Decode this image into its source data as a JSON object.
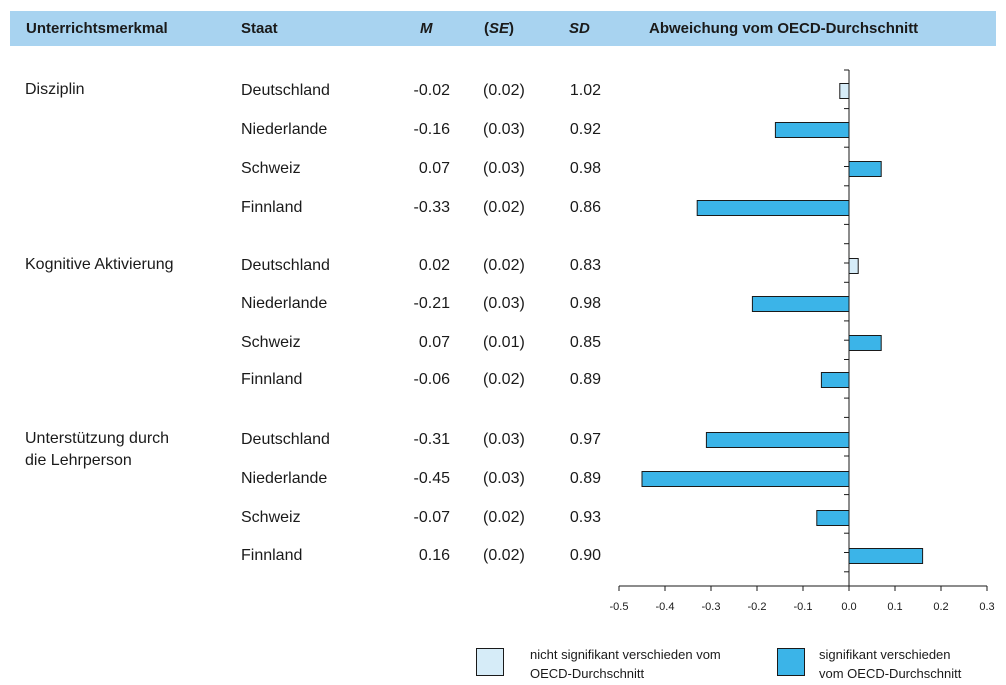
{
  "header": {
    "col_feature": "Unterrichtsmerkmal",
    "col_country": "Staat",
    "col_m": "M",
    "col_se_open": "(",
    "col_se": "SE",
    "col_se_close": ")",
    "col_sd": "SD",
    "col_chart": "Abweichung vom OECD-Durchschnitt"
  },
  "groups": [
    {
      "feature_lines": [
        "Disziplin"
      ]
    },
    {
      "feature_lines": [
        "Kognitive Aktivierung"
      ]
    },
    {
      "feature_lines": [
        "Unterstützung durch",
        "die Lehrperson"
      ]
    }
  ],
  "rows": [
    {
      "country": "Deutschland",
      "m": "-0.02",
      "se": "(0.02)",
      "sd": "1.02"
    },
    {
      "country": "Niederlande",
      "m": "-0.16",
      "se": "(0.03)",
      "sd": "0.92"
    },
    {
      "country": "Schweiz",
      "m": "0.07",
      "se": "(0.03)",
      "sd": "0.98"
    },
    {
      "country": "Finnland",
      "m": "-0.33",
      "se": "(0.02)",
      "sd": "0.86"
    },
    {
      "country": "Deutschland",
      "m": "0.02",
      "se": "(0.02)",
      "sd": "0.83"
    },
    {
      "country": "Niederlande",
      "m": "-0.21",
      "se": "(0.03)",
      "sd": "0.98"
    },
    {
      "country": "Schweiz",
      "m": "0.07",
      "se": "(0.01)",
      "sd": "0.85"
    },
    {
      "country": "Finnland",
      "m": "-0.06",
      "se": "(0.02)",
      "sd": "0.89"
    },
    {
      "country": "Deutschland",
      "m": "-0.31",
      "se": "(0.03)",
      "sd": "0.97"
    },
    {
      "country": "Niederlande",
      "m": "-0.45",
      "se": "(0.03)",
      "sd": "0.89"
    },
    {
      "country": "Schweiz",
      "m": "-0.07",
      "se": "(0.02)",
      "sd": "0.93"
    },
    {
      "country": "Finnland",
      "m": "0.16",
      "se": "(0.02)",
      "sd": "0.90"
    }
  ],
  "legend": {
    "not_significant_lines": [
      "nicht signifikant verschieden vom",
      "OECD-Durchschnitt"
    ],
    "significant_lines": [
      "signifikant verschieden",
      "vom OECD-Durchschnitt"
    ]
  },
  "colors": {
    "header_bg": "#a8d3f0",
    "significant": "#3bb4e8",
    "not_significant": "#d6ecf8",
    "stroke": "#1a1a1a"
  },
  "chart_data": {
    "type": "bar",
    "orientation": "horizontal",
    "title": "Abweichung vom OECD-Durchschnitt",
    "groups": [
      "Disziplin",
      "Kognitive Aktivierung",
      "Unterstützung durch die Lehrperson"
    ],
    "categories": [
      "Deutschland",
      "Niederlande",
      "Schweiz",
      "Finnland",
      "Deutschland",
      "Niederlande",
      "Schweiz",
      "Finnland",
      "Deutschland",
      "Niederlande",
      "Schweiz",
      "Finnland"
    ],
    "values": [
      -0.02,
      -0.16,
      0.07,
      -0.33,
      0.02,
      -0.21,
      0.07,
      -0.06,
      -0.31,
      -0.45,
      -0.07,
      0.16
    ],
    "significant": [
      false,
      true,
      true,
      true,
      false,
      true,
      true,
      true,
      true,
      true,
      true,
      true
    ],
    "xlim": [
      -0.5,
      0.3
    ],
    "xticks": [
      -0.5,
      -0.4,
      -0.3,
      -0.2,
      -0.1,
      0.0,
      0.1,
      0.2,
      0.3
    ],
    "xtick_labels": [
      "-0.5",
      "-0.4",
      "-0.3",
      "-0.2",
      "-0.1",
      "0.0",
      "0.1",
      "0.2",
      "0.3"
    ],
    "grid": false,
    "legend_position": "bottom"
  }
}
